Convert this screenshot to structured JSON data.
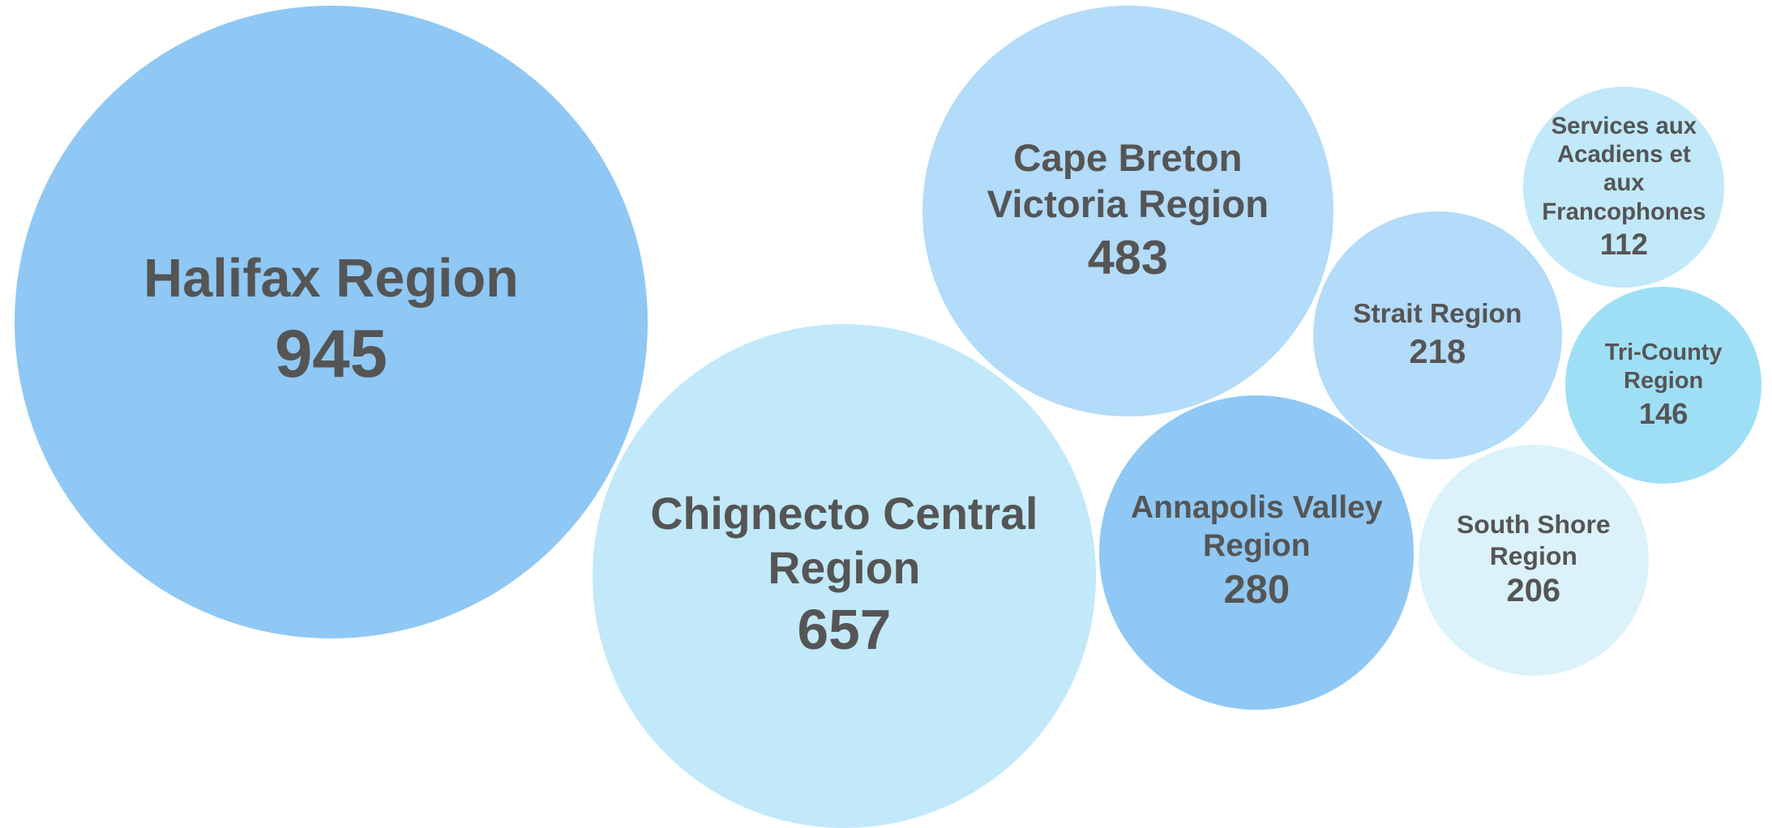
{
  "chart_data": {
    "type": "bubble",
    "categories": [
      "Halifax Region",
      "Chignecto Central Region",
      "Cape Breton Victoria Region",
      "Annapolis Valley Region",
      "Strait Region",
      "South Shore Region",
      "Services aux Acadiens et aux Francophones",
      "Tri-County Region"
    ],
    "values": [
      945,
      657,
      483,
      280,
      218,
      206,
      112,
      146
    ],
    "colors": [
      "#8fc8f4",
      "#c1e9f9",
      "#b3dbfa",
      "#8fc8f4",
      "#b3dbfa",
      "#dcf2fb",
      "#c1e9f9",
      "#9fdff6"
    ]
  }
}
